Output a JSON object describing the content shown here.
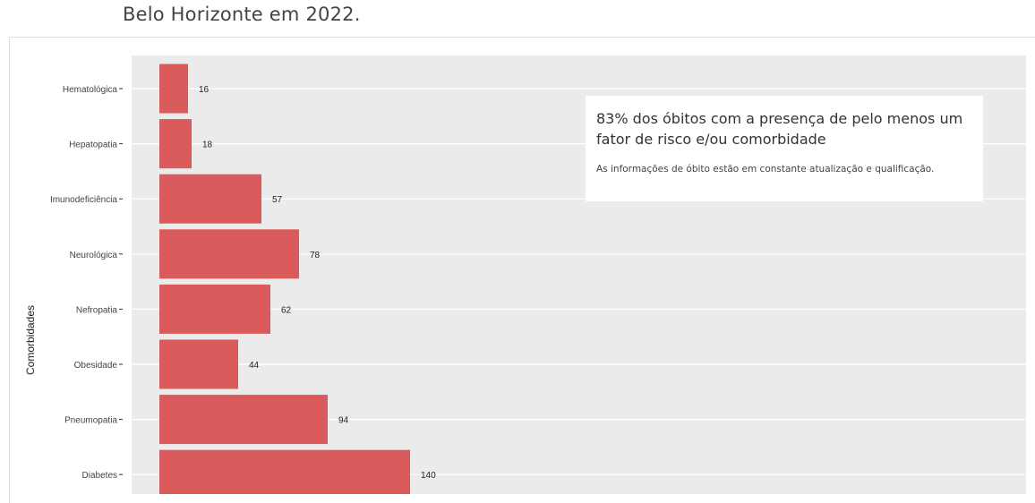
{
  "page": {
    "title": "Belo Horizonte em 2022."
  },
  "annotation": {
    "headline": "83% dos óbitos com a presença de pelo menos um fator de risco e/ou comorbidade",
    "note": "As informações de óbito estão em constante atualização e qualificação."
  },
  "chart_data": {
    "type": "bar",
    "orientation": "horizontal",
    "ylabel": "Comorbidades",
    "categories": [
      "Hematológica",
      "Hepatopatia",
      "Imunodeficiência",
      "Neurológica",
      "Nefropatia",
      "Obesidade",
      "Pneumopatia",
      "Diabetes"
    ],
    "values": [
      16,
      18,
      57,
      78,
      62,
      44,
      94,
      140
    ],
    "bar_color": "#d95b5b",
    "panel_color": "#ebebeb",
    "grid": true,
    "data_labels": true
  }
}
